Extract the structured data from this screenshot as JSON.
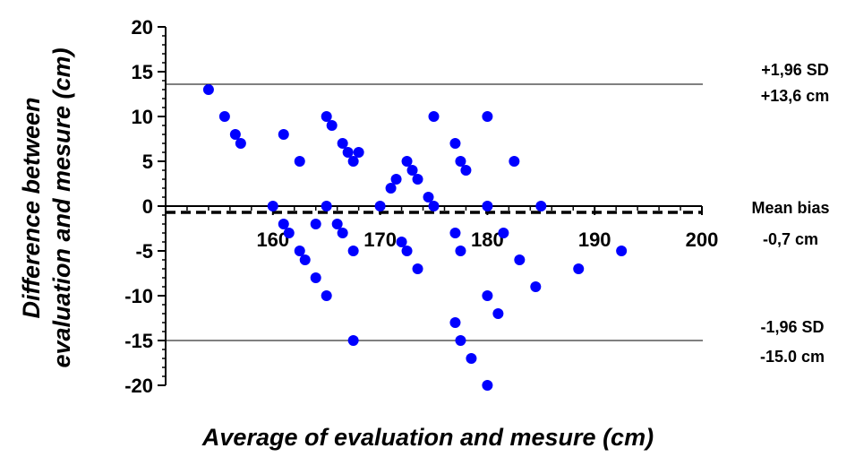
{
  "chart_data": {
    "type": "scatter",
    "xlabel": "Average of evaluation and mesure (cm)",
    "ylabel_line1": "Difference between",
    "ylabel_line2": "evaluation and mesure (cm)",
    "xlim": [
      150,
      200
    ],
    "ylim": [
      -20,
      20
    ],
    "x_ticks": [
      160,
      170,
      180,
      190,
      200
    ],
    "y_ticks": [
      20,
      15,
      10,
      5,
      0,
      -5,
      -10,
      -15,
      -20
    ],
    "reference_lines": {
      "zero": 0,
      "mean_bias": -0.7,
      "upper_limit": 13.6,
      "lower_limit": -15.0
    },
    "annotations": {
      "upper_label": "+1,96 SD",
      "upper_value": "+13,6 cm",
      "mean_label": "Mean bias",
      "mean_value": "-0,7 cm",
      "lower_label": "-1,96 SD",
      "lower_value": "-15.0 cm"
    },
    "points_color": "#0000ff",
    "points": [
      [
        154,
        13
      ],
      [
        155.5,
        10
      ],
      [
        156.5,
        8
      ],
      [
        157,
        7
      ],
      [
        160,
        0
      ],
      [
        161,
        8
      ],
      [
        161,
        -2
      ],
      [
        161.5,
        -3
      ],
      [
        162.5,
        5
      ],
      [
        162.5,
        -5
      ],
      [
        163,
        -6
      ],
      [
        164,
        -2
      ],
      [
        164,
        -8
      ],
      [
        165,
        10
      ],
      [
        165.5,
        9
      ],
      [
        165,
        0
      ],
      [
        165,
        -10
      ],
      [
        166,
        -2
      ],
      [
        166.5,
        7
      ],
      [
        166.5,
        -3
      ],
      [
        167,
        6
      ],
      [
        167.5,
        5
      ],
      [
        167.5,
        -5
      ],
      [
        167.5,
        -15
      ],
      [
        168,
        6
      ],
      [
        170,
        0
      ],
      [
        171,
        2
      ],
      [
        171.5,
        3
      ],
      [
        172,
        -4
      ],
      [
        172.5,
        5
      ],
      [
        172.5,
        -5
      ],
      [
        173,
        4
      ],
      [
        173.5,
        3
      ],
      [
        173.5,
        -7
      ],
      [
        174.5,
        1
      ],
      [
        175,
        10
      ],
      [
        175,
        0
      ],
      [
        177,
        7
      ],
      [
        177,
        -3
      ],
      [
        177,
        -13
      ],
      [
        177.5,
        5
      ],
      [
        178,
        4
      ],
      [
        177.5,
        -5
      ],
      [
        177.5,
        -15
      ],
      [
        178.5,
        -17
      ],
      [
        180,
        10
      ],
      [
        180,
        0
      ],
      [
        180,
        -10
      ],
      [
        180,
        -20
      ],
      [
        181,
        -12
      ],
      [
        181.5,
        -3
      ],
      [
        182.5,
        5
      ],
      [
        183,
        -6
      ],
      [
        184.5,
        -9
      ],
      [
        185,
        0
      ],
      [
        188.5,
        -7
      ],
      [
        192.5,
        -5
      ]
    ]
  }
}
